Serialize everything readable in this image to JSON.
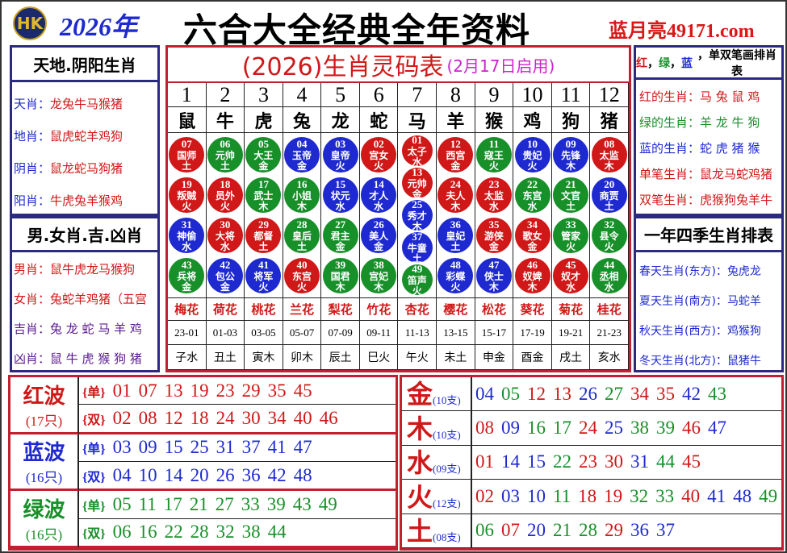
{
  "header": {
    "logo_text": "HK",
    "year": "2026年",
    "title": "六合大全经典全年资料",
    "site": "蓝月亮49171.com"
  },
  "left": {
    "head1": "天地.阴阳生肖",
    "items1": [
      {
        "k": "天肖",
        "v": "龙兔牛马猴猪"
      },
      {
        "k": "地肖",
        "v": "鼠虎蛇羊鸡狗"
      },
      {
        "k": "阴肖",
        "v": "鼠龙蛇马狗猪"
      },
      {
        "k": "阳肖",
        "v": "牛虎兔羊猴鸡"
      }
    ],
    "head2": "男.女肖.吉.凶肖",
    "items2": [
      {
        "k": "男肖",
        "v": "鼠牛虎龙马猴狗",
        "color": "#d01818"
      },
      {
        "k": "女肖",
        "v": "兔蛇羊鸡猪（五宫",
        "color": "#d01818"
      },
      {
        "k": "吉肖",
        "v": "兔 龙 蛇 马 羊 鸡",
        "color": "#5a1a90"
      },
      {
        "k": "凶肖",
        "v": "鼠 牛 虎 猴 狗 猪",
        "color": "#5a1a90"
      }
    ]
  },
  "center": {
    "title": "(2026)生肖灵码表",
    "subtitle": "(2月17日启用)",
    "columns": [
      {
        "num": "1",
        "zodiac": "鼠",
        "flower": "梅花",
        "time": "23-01",
        "branch": "子水",
        "balls": [
          [
            "07",
            "国师",
            "土"
          ],
          [
            "19",
            "叛贼",
            "火"
          ],
          [
            "31",
            "神偷",
            "水"
          ],
          [
            "43",
            "兵将",
            "金"
          ]
        ]
      },
      {
        "num": "2",
        "zodiac": "牛",
        "flower": "荷花",
        "time": "01-03",
        "branch": "丑土",
        "balls": [
          [
            "06",
            "元帅",
            "土"
          ],
          [
            "18",
            "员外",
            "火"
          ],
          [
            "30",
            "大将",
            "水"
          ],
          [
            "42",
            "包公",
            "金"
          ]
        ]
      },
      {
        "num": "3",
        "zodiac": "虎",
        "flower": "桃花",
        "time": "03-05",
        "branch": "寅木",
        "balls": [
          [
            "05",
            "大王",
            "金"
          ],
          [
            "17",
            "武士",
            "木"
          ],
          [
            "29",
            "都督",
            "土"
          ],
          [
            "41",
            "将军",
            "火"
          ]
        ]
      },
      {
        "num": "4",
        "zodiac": "兔",
        "flower": "兰花",
        "time": "05-07",
        "branch": "卯木",
        "balls": [
          [
            "04",
            "玉帝",
            "金"
          ],
          [
            "16",
            "小姐",
            "木"
          ],
          [
            "28",
            "皇后",
            "土"
          ],
          [
            "40",
            "东宫",
            "火"
          ]
        ]
      },
      {
        "num": "5",
        "zodiac": "龙",
        "flower": "梨花",
        "time": "07-09",
        "branch": "辰土",
        "balls": [
          [
            "03",
            "皇帝",
            "火"
          ],
          [
            "15",
            "状元",
            "水"
          ],
          [
            "27",
            "君主",
            "金"
          ],
          [
            "39",
            "国君",
            "木"
          ]
        ]
      },
      {
        "num": "6",
        "zodiac": "蛇",
        "flower": "竹花",
        "time": "09-11",
        "branch": "巳火",
        "balls": [
          [
            "02",
            "宫女",
            "火"
          ],
          [
            "14",
            "才人",
            "水"
          ],
          [
            "26",
            "美人",
            "金"
          ],
          [
            "38",
            "宫妃",
            "木"
          ]
        ]
      },
      {
        "num": "7",
        "zodiac": "马",
        "flower": "杏花",
        "time": "11-13",
        "branch": "午火",
        "balls": [
          [
            "01",
            "太子",
            "水"
          ],
          [
            "13",
            "元帅",
            "金"
          ],
          [
            "25",
            "秀才",
            "木"
          ],
          [
            "37",
            "牛童",
            "土"
          ],
          [
            "49",
            "笛声",
            "火"
          ]
        ]
      },
      {
        "num": "8",
        "zodiac": "羊",
        "flower": "樱花",
        "time": "13-15",
        "branch": "未土",
        "balls": [
          [
            "12",
            "西宫",
            "金"
          ],
          [
            "24",
            "夫人",
            "木"
          ],
          [
            "36",
            "皇妃",
            "土"
          ],
          [
            "48",
            "彩蝶",
            "火"
          ]
        ]
      },
      {
        "num": "9",
        "zodiac": "猴",
        "flower": "松花",
        "time": "15-17",
        "branch": "申金",
        "balls": [
          [
            "11",
            "寇王",
            "火"
          ],
          [
            "23",
            "太监",
            "水"
          ],
          [
            "35",
            "游侠",
            "金"
          ],
          [
            "47",
            "侠士",
            "木"
          ]
        ]
      },
      {
        "num": "10",
        "zodiac": "鸡",
        "flower": "葵花",
        "time": "17-19",
        "branch": "酉金",
        "balls": [
          [
            "10",
            "贵妃",
            "火"
          ],
          [
            "22",
            "东宫",
            "水"
          ],
          [
            "34",
            "歌女",
            "金"
          ],
          [
            "46",
            "奴婢",
            "木"
          ]
        ]
      },
      {
        "num": "11",
        "zodiac": "狗",
        "flower": "菊花",
        "time": "19-21",
        "branch": "戌土",
        "balls": [
          [
            "09",
            "先锋",
            "木"
          ],
          [
            "21",
            "文官",
            "土"
          ],
          [
            "33",
            "管家",
            "火"
          ],
          [
            "45",
            "奴才",
            "水"
          ]
        ]
      },
      {
        "num": "12",
        "zodiac": "猪",
        "flower": "桂花",
        "time": "21-23",
        "branch": "亥水",
        "balls": [
          [
            "08",
            "太监",
            "木"
          ],
          [
            "20",
            "商贾",
            "土"
          ],
          [
            "32",
            "县令",
            "火"
          ],
          [
            "44",
            "丞相",
            "水"
          ]
        ]
      }
    ]
  },
  "right": {
    "head1": [
      {
        "t": "红",
        "color": "#d01818"
      },
      {
        "t": "，",
        "color": "#000"
      },
      {
        "t": "绿",
        "color": "#18902a"
      },
      {
        "t": "，",
        "color": "#000"
      },
      {
        "t": "蓝",
        "color": "#1e2ad0"
      },
      {
        "t": "，单双笔画排肖表",
        "color": "#000"
      }
    ],
    "items1": [
      {
        "k": "红的生肖",
        "v": "马 兔 鼠 鸡",
        "color": "#d01818"
      },
      {
        "k": "绿的生肖",
        "v": "羊 龙 牛 狗",
        "color": "#18902a"
      },
      {
        "k": "蓝的生肖",
        "v": "蛇 虎 猪 猴",
        "color": "#1e2ad0"
      },
      {
        "k": "单笔生肖",
        "v": "鼠龙马蛇鸡猪",
        "color": "#d01818"
      },
      {
        "k": "双笔生肖",
        "v": "虎猴狗兔羊牛",
        "color": "#d01818"
      }
    ],
    "head2": "一年四季生肖排表",
    "items2": [
      {
        "k": "春天生肖(东方)",
        "v": "兔虎龙"
      },
      {
        "k": "夏天生肖(南方)",
        "v": "马蛇羊"
      },
      {
        "k": "秋天生肖(西方)",
        "v": "鸡猴狗"
      },
      {
        "k": "冬天生肖(北方)",
        "v": "鼠猪牛"
      }
    ]
  },
  "waves": [
    {
      "name": "红波",
      "count": "(17只)",
      "color": "#d01818",
      "single_label": "{单}",
      "double_label": "{双}",
      "single": [
        "01",
        "07",
        "13",
        "19",
        "23",
        "29",
        "35",
        "45"
      ],
      "double": [
        "02",
        "08",
        "12",
        "18",
        "24",
        "30",
        "34",
        "40",
        "46"
      ]
    },
    {
      "name": "蓝波",
      "count": "(16只)",
      "color": "#1e2ad0",
      "single_label": "{单}",
      "double_label": "{双}",
      "single": [
        "03",
        "09",
        "15",
        "25",
        "31",
        "37",
        "41",
        "47"
      ],
      "double": [
        "04",
        "10",
        "14",
        "20",
        "26",
        "36",
        "42",
        "48"
      ]
    },
    {
      "name": "绿波",
      "count": "(16只)",
      "color": "#18902a",
      "single_label": "{单}",
      "double_label": "{双}",
      "single": [
        "05",
        "11",
        "17",
        "21",
        "27",
        "33",
        "39",
        "43",
        "49"
      ],
      "double": [
        "06",
        "16",
        "22",
        "28",
        "32",
        "38",
        "44"
      ]
    }
  ],
  "elements": [
    {
      "name": "金",
      "count": "(10支)",
      "nums": [
        "04",
        "05",
        "12",
        "13",
        "26",
        "27",
        "34",
        "35",
        "42",
        "43"
      ]
    },
    {
      "name": "木",
      "count": "(10支)",
      "nums": [
        "08",
        "09",
        "16",
        "17",
        "24",
        "25",
        "38",
        "39",
        "46",
        "47"
      ]
    },
    {
      "name": "水",
      "count": "(09支)",
      "nums": [
        "01",
        "14",
        "15",
        "22",
        "23",
        "30",
        "31",
        "44",
        "45"
      ]
    },
    {
      "name": "火",
      "count": "(12支)",
      "nums": [
        "02",
        "03",
        "10",
        "11",
        "18",
        "19",
        "32",
        "33",
        "40",
        "41",
        "48",
        "49"
      ]
    },
    {
      "name": "土",
      "count": "(08支)",
      "nums": [
        "06",
        "07",
        "20",
        "21",
        "28",
        "29",
        "36",
        "37"
      ]
    }
  ]
}
